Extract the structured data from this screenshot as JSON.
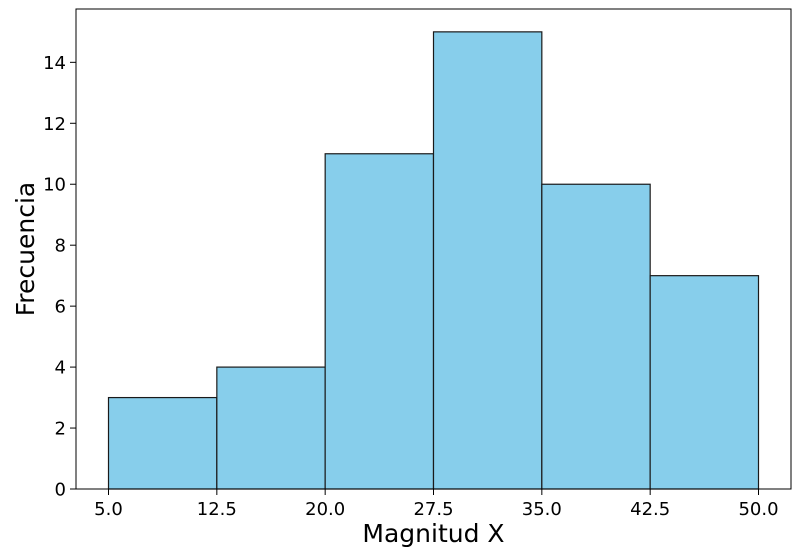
{
  "chart_data": {
    "type": "histogram",
    "title": "",
    "xlabel": "Magnitud X",
    "ylabel": "Frecuencia",
    "bins": [
      {
        "start": 5.0,
        "end": 12.5,
        "count": 3
      },
      {
        "start": 12.5,
        "end": 20.0,
        "count": 4
      },
      {
        "start": 20.0,
        "end": 27.5,
        "count": 11
      },
      {
        "start": 27.5,
        "end": 35.0,
        "count": 15
      },
      {
        "start": 35.0,
        "end": 42.5,
        "count": 10
      },
      {
        "start": 42.5,
        "end": 50.0,
        "count": 7
      }
    ],
    "xticks": [
      "5.0",
      "12.5",
      "20.0",
      "27.5",
      "35.0",
      "42.5",
      "50.0"
    ],
    "yticks": [
      "0",
      "2",
      "4",
      "6",
      "8",
      "10",
      "12",
      "14"
    ],
    "xlim": [
      2.75,
      52.25
    ],
    "ylim": [
      0,
      15.75
    ],
    "bar_color": "#87CEEB",
    "edge_color": "#1a1a1a",
    "grid": false
  }
}
